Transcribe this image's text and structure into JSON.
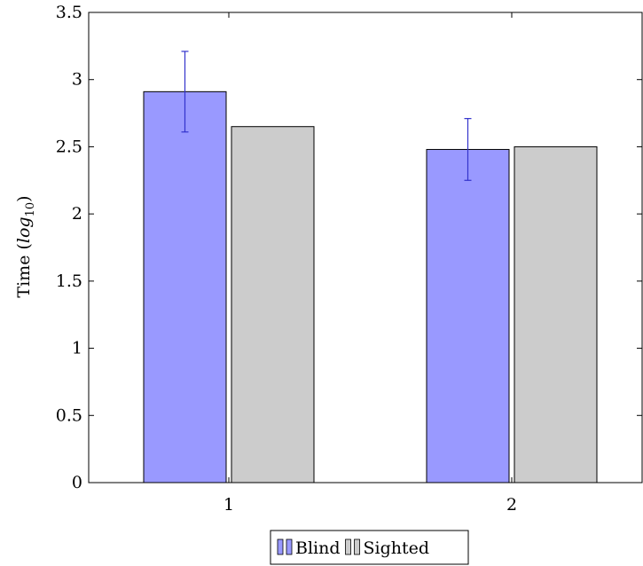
{
  "chart_data": {
    "type": "bar",
    "categories": [
      "1",
      "2"
    ],
    "series": [
      {
        "name": "Blind",
        "values": [
          2.91,
          2.48
        ],
        "error": [
          0.3,
          0.23
        ],
        "color": "#9999ff"
      },
      {
        "name": "Sighted",
        "values": [
          2.65,
          2.5
        ],
        "color": "#cccccc"
      }
    ],
    "ylabel_main": "Time (",
    "ylabel_italic": "log",
    "ylabel_sub": "10",
    "ylabel_close": ")",
    "ylim": [
      0,
      3.5
    ],
    "yticks": [
      0,
      0.5,
      1,
      1.5,
      2,
      2.5,
      3,
      3.5
    ],
    "ytick_labels": [
      "0",
      "0.5",
      "1",
      "1.5",
      "2",
      "2.5",
      "3",
      "3.5"
    ],
    "grid": false,
    "legend_position": "bottom-center",
    "error_bar_color": "#3333cc"
  }
}
